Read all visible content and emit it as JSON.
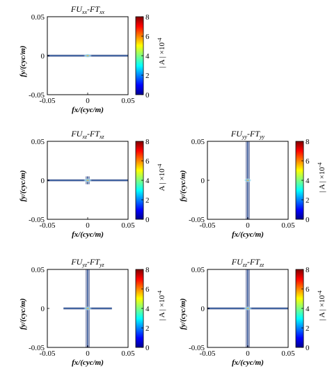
{
  "chart_data": [
    {
      "type": "heatmap",
      "title": "FU_xx-FT_xx",
      "title_parts": {
        "a": "FU",
        "a_sub": "xx",
        "b": "-FT",
        "b_sub": "xx"
      },
      "xlabel": "fx/(cyc/m)",
      "ylabel": "fy/(cyc/m)",
      "xlim": [
        -0.05,
        0.05
      ],
      "ylim": [
        -0.05,
        0.05
      ],
      "xticks": [
        "-0.05",
        "0",
        "0.05"
      ],
      "yticks": [
        "0.05",
        "0",
        "-0.05"
      ],
      "colorbar": {
        "label": "| A | ×10",
        "exponent": "-4",
        "range": [
          0,
          8
        ],
        "ticks": [
          "8",
          "6",
          "4",
          "2",
          "0"
        ]
      },
      "pattern": {
        "horizontal_line": [
          -0.05,
          0.05
        ],
        "vertical_line": null
      }
    },
    {
      "type": "heatmap",
      "title": "FU_xz-FT_xz",
      "title_parts": {
        "a": "FU",
        "a_sub": "xz",
        "b": "-FT",
        "b_sub": "xz"
      },
      "xlabel": "fx/(cyc/m)",
      "ylabel": "fy/(cyc/m)",
      "xlim": [
        -0.05,
        0.05
      ],
      "ylim": [
        -0.05,
        0.05
      ],
      "xticks": [
        "-0.05",
        "0",
        "0.05"
      ],
      "yticks": [
        "0.05",
        "0",
        "-0.05"
      ],
      "colorbar": {
        "label": "A | ×10",
        "exponent": "-4",
        "range": [
          0,
          8
        ],
        "ticks": [
          "8",
          "6",
          "4",
          "2",
          "0"
        ]
      },
      "pattern": {
        "horizontal_line": [
          -0.05,
          0.05
        ],
        "vertical_line": [
          -0.005,
          0.005
        ]
      }
    },
    {
      "type": "heatmap",
      "title": "FU_yy-FT_yy",
      "title_parts": {
        "a": "FU",
        "a_sub": "yy",
        "b": "-FT",
        "b_sub": "yy"
      },
      "xlabel": "fx/(cyc/m)",
      "ylabel": "fy/(cyc/m)",
      "xlim": [
        -0.05,
        0.05
      ],
      "ylim": [
        -0.05,
        0.05
      ],
      "xticks": [
        "-0.05",
        "0",
        "0.05"
      ],
      "yticks": [
        "0.05",
        "0",
        "-0.05"
      ],
      "colorbar": {
        "label": "| A | ×10",
        "exponent": "-4",
        "range": [
          0,
          8
        ],
        "ticks": [
          "8",
          "6",
          "4",
          "2",
          "0"
        ]
      },
      "pattern": {
        "horizontal_line": null,
        "vertical_line": [
          -0.05,
          0.05
        ]
      }
    },
    {
      "type": "heatmap",
      "title": "FU_yz-FT_yz",
      "title_parts": {
        "a": "FU",
        "a_sub": "yz",
        "b": "-FT",
        "b_sub": "yz"
      },
      "xlabel": "fx/(cyc/m)",
      "ylabel": "fy/(cyc/m)",
      "xlim": [
        -0.05,
        0.05
      ],
      "ylim": [
        -0.05,
        0.05
      ],
      "xticks": [
        "-0.05",
        "0",
        "0.05"
      ],
      "yticks": [
        "0.05",
        "0",
        "-0.05"
      ],
      "colorbar": {
        "label": "| A | ×10",
        "exponent": "-4",
        "range": [
          0,
          8
        ],
        "ticks": [
          "8",
          "6",
          "4",
          "2",
          "0"
        ]
      },
      "pattern": {
        "horizontal_line": [
          -0.03,
          0.03
        ],
        "vertical_line": [
          -0.05,
          0.05
        ]
      }
    },
    {
      "type": "heatmap",
      "title": "FU_zz-FT_zz",
      "title_parts": {
        "a": "FU",
        "a_sub": "zz",
        "b": "-FT",
        "b_sub": "zz"
      },
      "xlabel": "fx/(cyc/m)",
      "ylabel": "fy/(cyc/m)",
      "xlim": [
        -0.05,
        0.05
      ],
      "ylim": [
        -0.05,
        0.05
      ],
      "xticks": [
        "-0.05",
        "0",
        "0.05"
      ],
      "yticks": [
        "0.05",
        "0",
        "-0.05"
      ],
      "colorbar": {
        "label": "| A | ×10",
        "exponent": "-4",
        "range": [
          0,
          8
        ],
        "ticks": [
          "8",
          "6",
          "4",
          "2",
          "0"
        ]
      },
      "pattern": {
        "horizontal_line": [
          -0.05,
          0.05
        ],
        "vertical_line": [
          -0.05,
          0.05
        ]
      }
    }
  ],
  "colors": {
    "line": "#1a2a6e",
    "center_hot": "#f2a23a",
    "center_mid": "#7fd0f0"
  }
}
